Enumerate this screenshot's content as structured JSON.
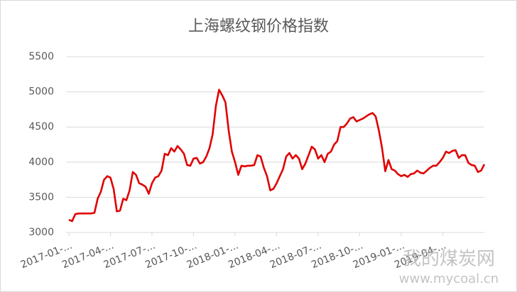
{
  "chart_data": {
    "type": "line",
    "title": "上海螺纹钢价格指数",
    "x": [
      0,
      1,
      2,
      3,
      4,
      5,
      6,
      7,
      8,
      9,
      10,
      11,
      12,
      13,
      14,
      15,
      16,
      17,
      18,
      19,
      20,
      21,
      22,
      23,
      24,
      25,
      26,
      27,
      28,
      29,
      30,
      31,
      32,
      33,
      34,
      35,
      36,
      37,
      38,
      39,
      40,
      41,
      42,
      43,
      44,
      45,
      46,
      47,
      48,
      49,
      50,
      51,
      52,
      53,
      54,
      55,
      56,
      57,
      58,
      59,
      60,
      61,
      62,
      63,
      64,
      65,
      66,
      67,
      68,
      69,
      70,
      71,
      72,
      73,
      74,
      75,
      76,
      77,
      78,
      79,
      80,
      81,
      82,
      83,
      84,
      85,
      86,
      87,
      88,
      89,
      90,
      91,
      92,
      93,
      94,
      95,
      96,
      97,
      98,
      99,
      100,
      101,
      102,
      103,
      104,
      105,
      106,
      107,
      108,
      109,
      110,
      111,
      112,
      113,
      114,
      115,
      116,
      117,
      118,
      119,
      120,
      121,
      122,
      123,
      124,
      125,
      126,
      127,
      128,
      129,
      130
    ],
    "values": [
      3180,
      3160,
      3260,
      3270,
      3270,
      3270,
      3270,
      3270,
      3280,
      3480,
      3580,
      3750,
      3800,
      3780,
      3620,
      3300,
      3310,
      3480,
      3460,
      3600,
      3860,
      3820,
      3700,
      3680,
      3650,
      3550,
      3700,
      3780,
      3800,
      3880,
      4120,
      4100,
      4200,
      4150,
      4230,
      4180,
      4120,
      3960,
      3950,
      4050,
      4060,
      3980,
      4000,
      4080,
      4200,
      4400,
      4800,
      5030,
      4950,
      4850,
      4450,
      4150,
      4000,
      3820,
      3950,
      3940,
      3950,
      3950,
      3960,
      4100,
      4080,
      3920,
      3800,
      3600,
      3620,
      3700,
      3800,
      3900,
      4080,
      4130,
      4050,
      4100,
      4050,
      3900,
      3980,
      4100,
      4220,
      4180,
      4050,
      4100,
      4000,
      4120,
      4150,
      4250,
      4300,
      4500,
      4500,
      4550,
      4620,
      4640,
      4580,
      4600,
      4620,
      4650,
      4680,
      4700,
      4650,
      4450,
      4200,
      3870,
      4030,
      3900,
      3880,
      3830,
      3800,
      3820,
      3790,
      3830,
      3840,
      3880,
      3850,
      3840,
      3880,
      3920,
      3950,
      3950,
      4000,
      4060,
      4150,
      4130,
      4160,
      4170,
      4060,
      4100,
      4100,
      3990,
      3960,
      3950,
      3860,
      3880,
      3970
    ],
    "color": "#e00000",
    "xlim": [
      0,
      130
    ],
    "xticks": [
      {
        "value": 0,
        "label": "2017-01-..."
      },
      {
        "value": 13,
        "label": "2017-04-..."
      },
      {
        "value": 26,
        "label": "2017-07-..."
      },
      {
        "value": 39,
        "label": "2017-10-..."
      },
      {
        "value": 52,
        "label": "2018-01-..."
      },
      {
        "value": 65,
        "label": "2018-04-..."
      },
      {
        "value": 78,
        "label": "2018-07-..."
      },
      {
        "value": 91,
        "label": "2018-10-..."
      },
      {
        "value": 104,
        "label": "2019-01-..."
      },
      {
        "value": 117,
        "label": "2019-04-..."
      }
    ],
    "ylim": [
      3000,
      5500
    ],
    "yticks": [
      3000,
      3500,
      4000,
      4500,
      5000,
      5500
    ],
    "grid": true
  },
  "watermark": {
    "name": "我的煤炭网",
    "url": "www.mycoal.cn"
  }
}
